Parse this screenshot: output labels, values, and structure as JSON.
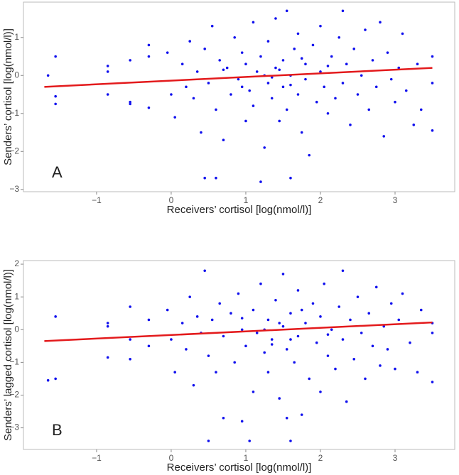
{
  "chart_data": [
    {
      "type": "scatter",
      "annotation": "A",
      "x_label": "Receivers’ cortisol [log(nmol/l)]",
      "y_label": "Senders’ cortisol [log(nmol/l)]",
      "xlim": [
        -1.98,
        3.8
      ],
      "ylim": [
        -3.06,
        1.93
      ],
      "xticks": [
        {
          "value": -1,
          "label": "−1"
        },
        0,
        1,
        2,
        3
      ],
      "yticks": [
        {
          "value": -3,
          "label": "−3"
        },
        {
          "value": -2,
          "label": "−2"
        },
        {
          "value": -1,
          "label": "−1"
        },
        0,
        1
      ],
      "points": {
        "color": "#1010ee",
        "x": [
          -1.65,
          -1.55,
          -1.55,
          -1.55,
          -0.85,
          -0.85,
          -0.85,
          -0.55,
          -0.55,
          -0.55,
          -0.3,
          -0.3,
          -0.3,
          -0.05,
          0.0,
          0.05,
          0.15,
          0.2,
          0.25,
          0.3,
          0.35,
          0.4,
          0.45,
          0.45,
          0.5,
          0.55,
          0.6,
          0.6,
          0.65,
          0.7,
          0.75,
          0.8,
          0.85,
          0.9,
          0.95,
          1.0,
          1.0,
          1.05,
          1.1,
          1.1,
          1.15,
          1.2,
          1.2,
          1.25,
          1.3,
          1.3,
          1.35,
          1.4,
          1.4,
          1.45,
          1.5,
          1.5,
          1.55,
          1.55,
          1.6,
          1.6,
          1.65,
          1.7,
          1.7,
          1.75,
          1.8,
          1.8,
          1.85,
          1.9,
          1.95,
          2.0,
          2.0,
          2.05,
          2.1,
          2.15,
          2.2,
          2.25,
          2.3,
          2.3,
          2.35,
          2.4,
          2.45,
          2.5,
          2.55,
          2.6,
          2.65,
          2.7,
          2.75,
          2.8,
          2.85,
          2.9,
          2.95,
          3.0,
          3.05,
          3.1,
          3.15,
          3.25,
          3.3,
          3.35,
          3.5,
          3.5,
          3.5,
          1.25,
          1.45,
          1.6,
          0.95,
          2.1,
          1.75,
          1.35,
          0.7
        ],
        "y": [
          0.0,
          0.5,
          -0.55,
          -0.75,
          0.25,
          0.1,
          -0.5,
          0.4,
          -0.7,
          -0.75,
          0.8,
          -0.85,
          0.5,
          0.6,
          -0.5,
          -1.1,
          0.3,
          -0.3,
          0.9,
          -0.6,
          0.1,
          -1.5,
          -2.7,
          0.7,
          -0.2,
          1.3,
          -2.7,
          -0.9,
          0.4,
          -1.7,
          0.2,
          -0.5,
          1.0,
          -0.1,
          0.6,
          -1.2,
          0.3,
          -0.4,
          1.4,
          -0.8,
          0.1,
          -2.8,
          0.5,
          -1.9,
          -0.2,
          0.9,
          -0.6,
          0.2,
          1.5,
          -1.2,
          0.4,
          -0.3,
          1.7,
          -0.9,
          -2.7,
          0.0,
          0.7,
          -0.5,
          1.1,
          -1.5,
          0.3,
          -0.1,
          -2.1,
          0.8,
          -0.7,
          0.1,
          1.3,
          -0.3,
          -1.0,
          0.5,
          -0.6,
          1.0,
          1.7,
          -0.2,
          0.3,
          -1.3,
          0.7,
          -0.5,
          0.0,
          1.2,
          -0.9,
          0.4,
          -0.3,
          1.4,
          -1.6,
          0.6,
          -0.1,
          -0.7,
          0.2,
          1.1,
          -0.4,
          -1.3,
          0.3,
          -0.9,
          -1.45,
          0.5,
          -0.2,
          0.0,
          0.15,
          -0.25,
          -0.3,
          0.25,
          0.45,
          -0.05,
          0.15
        ]
      },
      "fit": {
        "color": "#e31a1c",
        "x": [
          -1.7,
          3.5
        ],
        "y": [
          -0.3,
          0.2
        ]
      }
    },
    {
      "type": "scatter",
      "annotation": "B",
      "x_label": "Receivers’ cortisol [log(nmol/l)]",
      "y_label": "Senders’ lagged cortisol [log(nmol/l)]",
      "xlim": [
        -1.98,
        3.8
      ],
      "ylim": [
        -3.66,
        2.11
      ],
      "xticks": [
        {
          "value": -1,
          "label": "−1"
        },
        0,
        1,
        2,
        3
      ],
      "yticks": [
        {
          "value": -3,
          "label": "−3"
        },
        {
          "value": -2,
          "label": "−2"
        },
        {
          "value": -1,
          "label": "−1"
        },
        0,
        1,
        2
      ],
      "points": {
        "color": "#1010ee",
        "x": [
          -1.65,
          -1.55,
          -1.55,
          -0.85,
          -0.85,
          -0.85,
          -0.55,
          -0.55,
          -0.55,
          -0.3,
          -0.3,
          -0.05,
          0.0,
          0.05,
          0.15,
          0.2,
          0.25,
          0.3,
          0.35,
          0.4,
          0.45,
          0.5,
          0.5,
          0.55,
          0.6,
          0.65,
          0.7,
          0.7,
          0.8,
          0.85,
          0.9,
          0.95,
          0.95,
          1.0,
          1.05,
          1.1,
          1.1,
          1.15,
          1.2,
          1.25,
          1.3,
          1.3,
          1.35,
          1.4,
          1.45,
          1.5,
          1.5,
          1.55,
          1.55,
          1.6,
          1.6,
          1.65,
          1.7,
          1.7,
          1.75,
          1.8,
          1.85,
          1.9,
          1.95,
          2.0,
          2.0,
          2.05,
          2.1,
          2.15,
          2.2,
          2.25,
          2.3,
          2.3,
          2.35,
          2.4,
          2.45,
          2.5,
          2.55,
          2.6,
          2.65,
          2.7,
          2.75,
          2.8,
          2.85,
          2.9,
          2.95,
          3.0,
          3.05,
          3.1,
          3.2,
          3.3,
          3.35,
          3.5,
          3.5,
          3.5,
          1.25,
          1.45,
          1.6,
          0.95,
          2.1,
          1.75,
          1.35
        ],
        "y": [
          -1.55,
          0.4,
          -1.5,
          0.2,
          0.1,
          -0.85,
          0.7,
          -0.3,
          -0.9,
          0.3,
          -0.5,
          0.6,
          -0.3,
          -1.3,
          0.2,
          -0.6,
          1.0,
          -1.7,
          0.4,
          -0.1,
          1.8,
          -3.4,
          -0.8,
          0.3,
          -1.3,
          0.8,
          -2.7,
          -0.2,
          0.5,
          -1.0,
          1.1,
          -2.8,
          0.0,
          -0.5,
          -3.4,
          0.6,
          -1.9,
          -0.1,
          1.4,
          -0.7,
          0.3,
          -1.3,
          -0.3,
          0.9,
          -2.1,
          0.1,
          1.7,
          -2.7,
          -0.6,
          0.5,
          -3.4,
          -1.0,
          1.2,
          -0.2,
          -2.6,
          0.2,
          -1.5,
          0.8,
          -0.4,
          -1.9,
          0.4,
          1.4,
          -0.8,
          0.0,
          -1.2,
          0.7,
          1.8,
          -0.3,
          -2.2,
          0.3,
          -0.9,
          1.0,
          -0.1,
          -1.5,
          0.5,
          -0.5,
          1.3,
          -1.1,
          0.1,
          -0.6,
          0.8,
          -1.2,
          0.3,
          1.1,
          -0.4,
          -1.3,
          0.6,
          -1.6,
          0.2,
          -0.1,
          0.0,
          0.2,
          -0.3,
          0.35,
          -0.15,
          0.6,
          -0.45
        ]
      },
      "fit": {
        "color": "#e31a1c",
        "x": [
          -1.7,
          3.5
        ],
        "y": [
          -0.35,
          0.22
        ]
      }
    }
  ]
}
